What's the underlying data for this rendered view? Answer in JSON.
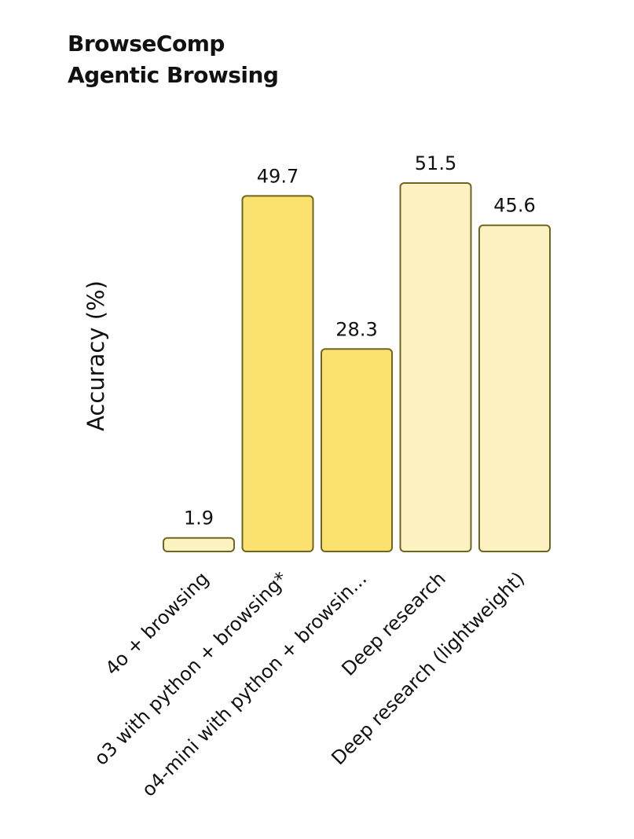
{
  "chart_data": {
    "type": "bar",
    "title_lines": [
      "BrowseComp",
      "Agentic Browsing"
    ],
    "ylabel": "Accuracy (%)",
    "xlabel": "",
    "ylim": [
      0,
      51.5
    ],
    "grid": false,
    "categories": [
      "4o + browsing",
      "o3 with python + browsing*",
      "o4-mini with python + browsin...",
      "Deep research",
      "Deep research (lightweight)"
    ],
    "values": [
      1.9,
      49.7,
      28.3,
      51.5,
      45.6
    ],
    "value_labels": [
      "1.9",
      "49.7",
      "28.3",
      "51.5",
      "45.6"
    ],
    "bar_colors": [
      "#fdf3c2",
      "#fbe26f",
      "#fbe26f",
      "#fdf3c2",
      "#fdf3c2"
    ],
    "bar_stroke": "#6f6420"
  }
}
